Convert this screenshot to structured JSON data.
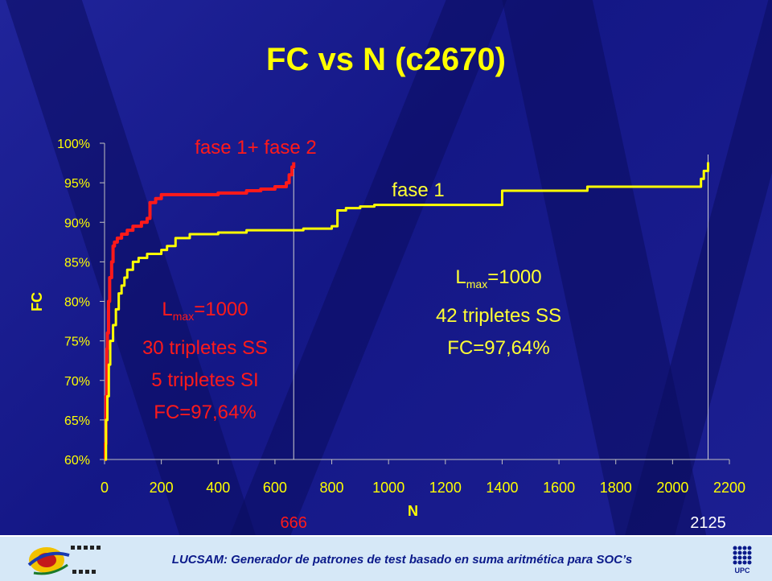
{
  "title": "FC vs N (c2670)",
  "footer": {
    "text": "LUCSAM: Generador de patrones de test basado en suma aritmética para SOC’s",
    "logo_right": "UPC"
  },
  "annotations": {
    "left": {
      "lmax_prefix": "L",
      "lmax_sub": "max",
      "lmax_value": "=1000",
      "line2": "30 tripletes SS",
      "line3": "5 tripletes SI",
      "line4": "FC=97,64%"
    },
    "right": {
      "lmax_prefix": "L",
      "lmax_sub": "max",
      "lmax_value": "=1000",
      "line2": "42 tripletes SS",
      "line3": "FC=97,64%"
    },
    "marker_left": "666",
    "marker_right": "2125"
  },
  "colors": {
    "background": "#1a1d8c",
    "title": "#ffff00",
    "series_red": "#ff1a1a",
    "series_yellow": "#ffff00"
  },
  "chart_data": {
    "type": "line",
    "title": "FC vs N (c2670)",
    "xlabel": "N",
    "ylabel": "FC",
    "xlim": [
      0,
      2200
    ],
    "ylim": [
      0.6,
      1.0
    ],
    "xticks": [
      "0",
      "200",
      "400",
      "600",
      "800",
      "1000",
      "1200",
      "1400",
      "1600",
      "1800",
      "2000",
      "2200"
    ],
    "yticks": [
      "60%",
      "65%",
      "70%",
      "75%",
      "80%",
      "85%",
      "90%",
      "95%",
      "100%"
    ],
    "grid": false,
    "vlines": [
      666,
      2125
    ],
    "series": [
      {
        "name": "fase 1+ fase 2",
        "color": "#ff1a1a",
        "x": [
          0,
          3,
          5,
          8,
          10,
          14,
          18,
          25,
          30,
          35,
          45,
          60,
          80,
          100,
          130,
          150,
          160,
          180,
          200,
          300,
          400,
          500,
          550,
          600,
          640,
          650,
          660,
          666
        ],
        "y": [
          0.6,
          0.62,
          0.68,
          0.74,
          0.76,
          0.8,
          0.83,
          0.85,
          0.87,
          0.875,
          0.88,
          0.885,
          0.89,
          0.895,
          0.9,
          0.905,
          0.925,
          0.93,
          0.935,
          0.935,
          0.937,
          0.94,
          0.942,
          0.945,
          0.95,
          0.96,
          0.97,
          0.976
        ]
      },
      {
        "name": "fase 1",
        "color": "#ffff00",
        "x": [
          0,
          5,
          10,
          15,
          20,
          30,
          40,
          50,
          60,
          70,
          80,
          100,
          120,
          150,
          200,
          220,
          250,
          300,
          400,
          500,
          600,
          700,
          800,
          820,
          850,
          900,
          950,
          1000,
          1200,
          1390,
          1400,
          1500,
          1600,
          1700,
          1800,
          1900,
          2000,
          2080,
          2100,
          2110,
          2125
        ],
        "y": [
          0.6,
          0.65,
          0.68,
          0.72,
          0.75,
          0.77,
          0.79,
          0.81,
          0.82,
          0.83,
          0.84,
          0.85,
          0.855,
          0.86,
          0.865,
          0.87,
          0.88,
          0.885,
          0.887,
          0.89,
          0.89,
          0.892,
          0.895,
          0.915,
          0.918,
          0.92,
          0.922,
          0.922,
          0.922,
          0.922,
          0.94,
          0.94,
          0.94,
          0.945,
          0.945,
          0.945,
          0.945,
          0.945,
          0.955,
          0.965,
          0.976
        ]
      }
    ],
    "legend": "inline labels near curves"
  }
}
